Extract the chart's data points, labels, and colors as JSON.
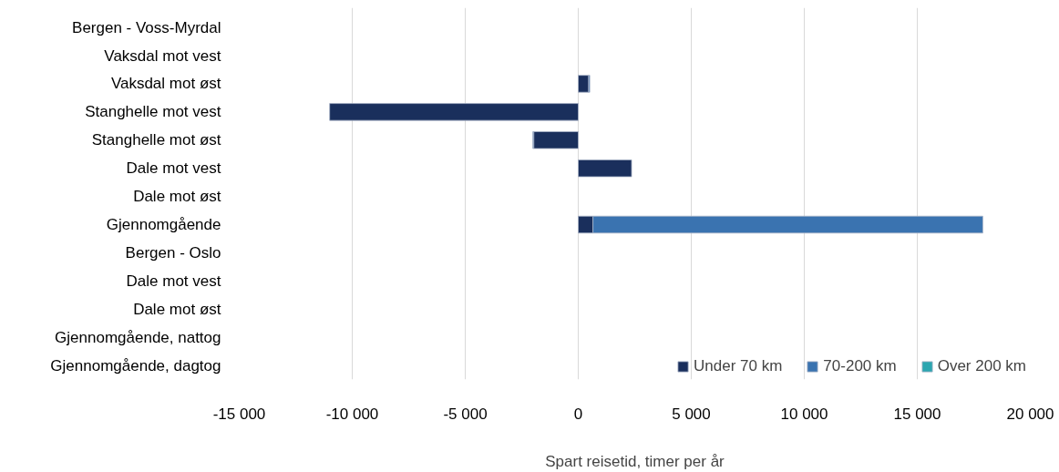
{
  "chart_data": {
    "type": "bar",
    "orientation": "horizontal",
    "stacked": true,
    "xlabel": "Spart reisetid, timer per år",
    "categories": [
      "Bergen - Voss-Myrdal",
      "Vaksdal mot vest",
      "Vaksdal mot øst",
      "Stanghelle mot vest",
      "Stanghelle mot øst",
      "Dale mot vest",
      "Dale mot øst",
      "Gjennomgående",
      "Bergen - Oslo",
      "Dale mot vest",
      "Dale mot øst",
      "Gjennomgående, nattog",
      "Gjennomgående, dagtog"
    ],
    "series": [
      {
        "name": "Under 70 km",
        "color": "#1a2f5c",
        "values": [
          null,
          null,
          460,
          -11000,
          -1970,
          2360,
          null,
          650,
          null,
          null,
          null,
          null,
          null
        ]
      },
      {
        "name": "70-200 km",
        "color": "#3a73b0",
        "values": [
          null,
          null,
          50,
          null,
          -40,
          null,
          null,
          17250,
          null,
          null,
          null,
          null,
          null
        ]
      },
      {
        "name": "Over 200 km",
        "color": "#2ba6b0",
        "values": [
          null,
          null,
          null,
          null,
          null,
          null,
          null,
          null,
          null,
          null,
          null,
          null,
          null
        ]
      }
    ],
    "xlim": [
      -15000,
      20000
    ],
    "xticks": [
      {
        "value": -15000,
        "label": "-15 000"
      },
      {
        "value": -10000,
        "label": "-10 000"
      },
      {
        "value": -5000,
        "label": "-5 000"
      },
      0,
      {
        "value": 5000,
        "label": "5 000"
      },
      {
        "value": 10000,
        "label": "10 000"
      },
      {
        "value": 15000,
        "label": "15 000"
      },
      {
        "value": 20000,
        "label": "20 000"
      }
    ],
    "grid": "x",
    "legend": "bottom right"
  }
}
